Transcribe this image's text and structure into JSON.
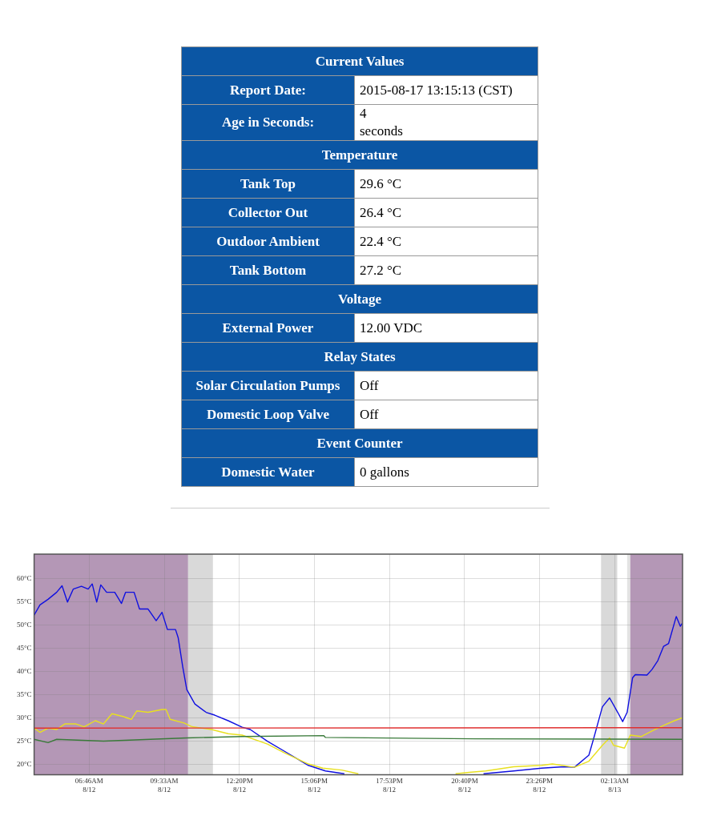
{
  "chart_data": [
    {
      "type": "other",
      "title": "Current Values",
      "y_categories": [
        "Report Date:",
        "Age in Seconds:",
        "Temperature",
        "Tank Top",
        "Collector Out",
        "Outdoor Ambient",
        "Tank Bottom",
        "Voltage",
        "External Power",
        "Relay States",
        "Solar Circulation Pumps",
        "Domestic Loop Valve",
        "Event Counter",
        "Domestic Water"
      ],
      "cell_labels": [
        [
          "2015-08-17 13:15:13 (CST)"
        ],
        [
          "4\nseconds"
        ],
        [
          null
        ],
        [
          "29.6 °C"
        ],
        [
          "26.4 °C"
        ],
        [
          "22.4 °C"
        ],
        [
          "27.2 °C"
        ],
        [
          null
        ],
        [
          "12.00 VDC"
        ],
        [
          null
        ],
        [
          "Off"
        ],
        [
          "Off"
        ],
        [
          null
        ],
        [
          "0 gallons"
        ]
      ]
    },
    {
      "type": "line",
      "xlim": [
        "--08-12T04:44",
        "--08-13T04:44"
      ],
      "ylim": [
        17.8,
        65.2
      ],
      "xticks": [
        {
          "value": "--08-12T06:46",
          "label": "06:46AM\n8/12"
        },
        {
          "value": "--08-12T09:33",
          "label": "09:33AM\n8/12"
        },
        {
          "value": "--08-12T12:20",
          "label": "12:20PM\n8/12"
        },
        {
          "value": "--08-12T15:06",
          "label": "15:06PM\n8/12"
        },
        {
          "value": "--08-12T17:53",
          "label": "17:53PM\n8/12"
        },
        {
          "value": "--08-12T20:40",
          "label": "20:40PM\n8/12"
        },
        {
          "value": "--08-12T23:26",
          "label": "23:26PM\n8/12"
        },
        {
          "value": "--08-13T02:13",
          "label": "02:13AM\n8/13"
        }
      ],
      "yticks": [
        {
          "value": 20,
          "label": "20°C"
        },
        {
          "value": 25,
          "label": "25°C"
        },
        {
          "value": 30,
          "label": "30°C"
        },
        {
          "value": 35,
          "label": "35°C"
        },
        {
          "value": 40,
          "label": "40°C"
        },
        {
          "value": 45,
          "label": "45°C"
        },
        {
          "value": 50,
          "label": "50°C"
        },
        {
          "value": 55,
          "label": "55°C"
        },
        {
          "value": 60,
          "label": "60°C"
        }
      ],
      "grid": true,
      "legend": false,
      "marker": "none",
      "line_style": "solid",
      "bands": [
        {
          "axis": "x",
          "from": "--08-12T04:44",
          "to": "--08-12T10:26",
          "color": "#b497b6"
        },
        {
          "axis": "x",
          "from": "--08-12T10:26",
          "to": "--08-12T11:21",
          "color": "#d9d9d9"
        },
        {
          "axis": "x",
          "from": "--08-13T01:43",
          "to": "--08-13T02:19",
          "color": "#d9d9d9"
        },
        {
          "axis": "x",
          "from": "--08-13T02:41",
          "to": "--08-13T02:48",
          "color": "#e3e3e3"
        },
        {
          "axis": "x",
          "from": "--08-13T02:48",
          "to": "--08-13T04:44",
          "color": "#b497b6"
        }
      ],
      "series": [
        {
          "color": "#e03030",
          "x": [
            "--08-12T04:44",
            "--08-13T04:43"
          ],
          "values": [
            27.8,
            27.9
          ]
        },
        {
          "color": "#3a7a3a",
          "x": [
            "--08-12T04:44",
            "--08-12T05:15",
            "--08-12T05:34",
            "--08-12T07:18",
            "--08-12T10:23",
            "--08-12T12:26",
            "--08-12T15:27",
            "--08-12T15:31",
            "--08-12T21:03",
            "--08-13T04:43"
          ],
          "values": [
            25.4,
            24.7,
            25.4,
            25.0,
            25.7,
            26.0,
            26.2,
            25.8,
            25.5,
            25.4
          ]
        },
        {
          "color": "#e8e020",
          "x": [
            "--08-12T04:44",
            "--08-12T04:57",
            "--08-12T05:15",
            "--08-12T05:34",
            "--08-12T05:52",
            "--08-12T06:17",
            "--08-12T06:35",
            "--08-12T07:00",
            "--08-12T07:18",
            "--08-12T07:37",
            "--08-12T08:01",
            "--08-12T08:20",
            "--08-12T08:32",
            "--08-12T08:57",
            "--08-12T09:28",
            "--08-12T09:37",
            "--08-12T09:46",
            "--08-12T10:17",
            "--08-12T10:35",
            "--08-12T11:18",
            "--08-12T11:55",
            "--08-12T12:26",
            "--08-12T13:22",
            "--08-12T13:58",
            "--08-12T14:53",
            "--08-12T15:25",
            "--08-12T16:07",
            "--08-12T16:44",
            "--08-12T17:30",
            "--08-12T20:20",
            "--08-12T20:50",
            "--08-12T21:27",
            "--08-12T22:29",
            "--08-12T23:31",
            "--08-12T23:55",
            "--08-13T00:44",
            "--08-13T01:16",
            "--08-13T01:46",
            "--08-13T02:02",
            "--08-13T02:11",
            "--08-13T02:35",
            "--08-13T02:48",
            "--08-13T03:12",
            "--08-13T03:36",
            "--08-13T04:02",
            "--08-13T04:26",
            "--08-13T04:43"
          ],
          "values": [
            27.8,
            26.9,
            27.8,
            27.5,
            28.7,
            28.7,
            28.1,
            29.4,
            28.7,
            30.9,
            30.3,
            29.7,
            31.5,
            31.2,
            31.8,
            31.8,
            29.7,
            28.9,
            28.1,
            27.5,
            26.6,
            26.3,
            24.4,
            22.6,
            20.1,
            19.2,
            18.8,
            18.0,
            null,
            18.0,
            18.3,
            18.6,
            19.5,
            19.8,
            20.1,
            19.4,
            20.7,
            24.1,
            25.7,
            24.1,
            23.5,
            26.3,
            26.0,
            27.2,
            28.4,
            29.4,
            30.0
          ]
        },
        {
          "color": "#1010e0",
          "x": [
            "--08-12T04:44",
            "--08-12T04:57",
            "--08-12T05:15",
            "--08-12T05:34",
            "--08-12T05:46",
            "--08-12T05:58",
            "--08-12T06:11",
            "--08-12T06:29",
            "--08-12T06:44",
            "--08-12T06:53",
            "--08-12T07:03",
            "--08-12T07:12",
            "--08-12T07:25",
            "--08-12T07:43",
            "--08-12T07:58",
            "--08-12T08:07",
            "--08-12T08:26",
            "--08-12T08:38",
            "--08-12T08:57",
            "--08-12T09:15",
            "--08-12T09:28",
            "--08-12T09:40",
            "--08-12T09:58",
            "--08-12T10:04",
            "--08-12T10:14",
            "--08-12T10:23",
            "--08-12T10:41",
            "--08-12T11:06",
            "--08-12T11:25",
            "--08-12T11:55",
            "--08-12T12:26",
            "--08-12T12:44",
            "--08-12T13:22",
            "--08-12T14:04",
            "--08-12T14:53",
            "--08-12T15:31",
            "--08-12T16:13",
            "--08-12T17:00",
            "--08-12T21:22",
            "--08-12T22:29",
            "--08-12T23:31",
            "--08-13T00:20",
            "--08-13T00:44",
            "--08-13T01:16",
            "--08-13T01:27",
            "--08-13T01:46",
            "--08-13T02:02",
            "--08-13T02:20",
            "--08-13T02:31",
            "--08-13T02:41",
            "--08-13T02:53",
            "--08-13T02:59",
            "--08-13T03:25",
            "--08-13T03:36",
            "--08-13T03:49",
            "--08-13T04:02",
            "--08-13T04:13",
            "--08-13T04:30",
            "--08-13T04:39",
            "--08-13T04:43"
          ],
          "values": [
            52.1,
            54.3,
            55.5,
            57.0,
            58.4,
            54.9,
            57.7,
            58.3,
            57.7,
            58.8,
            54.9,
            58.6,
            57.0,
            57.0,
            54.6,
            57.0,
            57.0,
            53.4,
            53.4,
            50.9,
            52.7,
            49.0,
            49.0,
            47.2,
            41.0,
            36.1,
            33.0,
            31.2,
            30.6,
            29.4,
            28.0,
            27.5,
            25.0,
            22.6,
            19.8,
            18.6,
            18.0,
            null,
            18.0,
            18.6,
            19.2,
            19.5,
            19.4,
            22.0,
            25.7,
            32.4,
            34.3,
            31.2,
            29.2,
            31.2,
            38.6,
            39.3,
            39.2,
            40.4,
            42.3,
            45.4,
            46.0,
            51.8,
            49.7,
            50.3
          ]
        }
      ]
    }
  ]
}
